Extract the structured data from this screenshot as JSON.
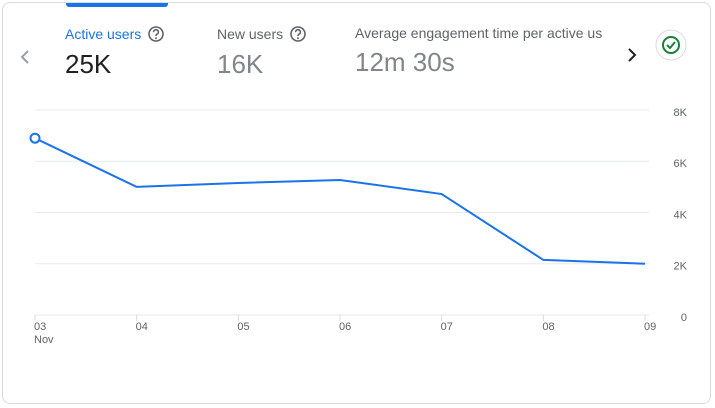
{
  "metrics": [
    {
      "label": "Active users",
      "value": "25K"
    },
    {
      "label": "New users",
      "value": "16K"
    },
    {
      "label": "Average engagement time per active us",
      "value": "12m 30s"
    }
  ],
  "chart_data": {
    "type": "line",
    "categories": [
      "03",
      "04",
      "05",
      "06",
      "07",
      "08",
      "09"
    ],
    "x_sublabel": "Nov",
    "series": [
      {
        "name": "Active users",
        "color": "#1a73e8",
        "values": [
          6900,
          5000,
          5150,
          5270,
          4720,
          2150,
          2000
        ]
      }
    ],
    "ylim": [
      0,
      8000
    ],
    "yticks": [
      0,
      {
        "value": 2000,
        "label": "2K"
      },
      {
        "value": 4000,
        "label": "4K"
      },
      {
        "value": 6000,
        "label": "6K"
      },
      {
        "value": 8000,
        "label": "8K"
      }
    ],
    "grid": true
  }
}
